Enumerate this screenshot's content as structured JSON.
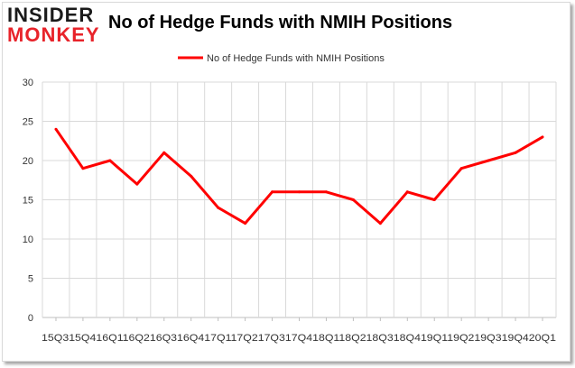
{
  "logo": {
    "line1": "INSIDER",
    "line2": "MONKEY"
  },
  "chart_data": {
    "type": "line",
    "title": "No of Hedge Funds with NMIH Positions",
    "legend_position": "top",
    "grid": true,
    "categories": [
      "15Q3",
      "15Q4",
      "16Q1",
      "16Q2",
      "16Q3",
      "16Q4",
      "17Q1",
      "17Q2",
      "17Q3",
      "17Q4",
      "18Q1",
      "18Q2",
      "18Q3",
      "18Q4",
      "19Q1",
      "19Q2",
      "19Q3",
      "19Q4",
      "20Q1"
    ],
    "series": [
      {
        "name": "No of Hedge Funds with NMIH  Positions",
        "values": [
          24,
          19,
          20,
          17,
          21,
          18,
          14,
          12,
          16,
          16,
          16,
          15,
          12,
          16,
          15,
          19,
          20,
          21,
          23
        ],
        "color": "#ff0000"
      }
    ],
    "ylim": [
      0,
      30
    ],
    "yticks": [
      0,
      5,
      10,
      15,
      20,
      25,
      30
    ],
    "x_tick_text": "15Q315Q416Q116Q216Q316Q417Q117Q217Q317Q418Q118Q218Q318Q419Q119Q219Q319Q420Q1"
  }
}
